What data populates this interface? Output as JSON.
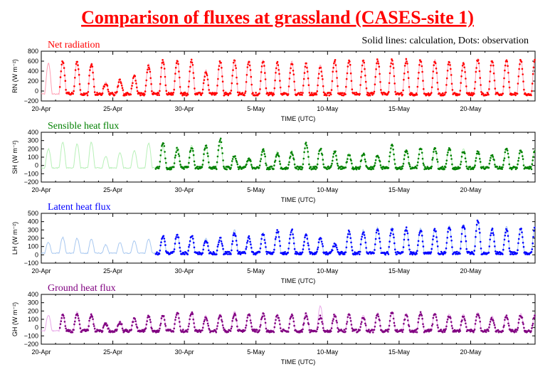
{
  "header": {
    "title": "Comparison of fluxes at grassland (CASES-site 1)",
    "subtitle": "Solid lines: calculation, Dots: observation"
  },
  "chart_data": [
    {
      "type": "line",
      "label": "Net radiation",
      "ylabel": "RN (W m⁻²)",
      "xlabel": "TIME (UTC)",
      "ylim": [
        -200,
        800
      ],
      "yticks": [
        -200,
        0,
        200,
        400,
        600,
        800
      ],
      "x_tick_labels": [
        "20-Apr",
        "25-Apr",
        "30-Apr",
        "5-May",
        "10-May",
        "15-May",
        "20-May"
      ],
      "x_range": [
        "2000-04-20",
        "2000-05-24"
      ],
      "series": [
        {
          "name": "calculation",
          "style": "line",
          "color": "#ffa0b4"
        },
        {
          "name": "observation",
          "style": "dots",
          "color": "#ff0000"
        }
      ],
      "obs_start_day": 1.3,
      "daily_peak_obs": [
        0,
        600,
        580,
        540,
        150,
        220,
        300,
        500,
        610,
        610,
        610,
        380,
        590,
        600,
        600,
        600,
        560,
        560,
        540,
        480,
        620,
        610,
        600,
        620,
        620,
        620,
        620,
        610,
        580,
        560,
        630,
        600,
        620,
        620,
        630
      ],
      "daily_peak_calc": [
        560,
        600,
        580,
        560,
        180,
        240,
        320,
        540,
        620,
        620,
        620,
        420,
        600,
        620,
        620,
        620,
        580,
        600,
        560,
        520,
        640,
        620,
        620,
        640,
        640,
        640,
        640,
        630,
        600,
        580,
        650,
        620,
        640,
        640,
        650
      ],
      "night_value": -60
    },
    {
      "type": "line",
      "label": "Sensible heat flux",
      "ylabel": "SH (W m⁻²)",
      "xlabel": "TIME (UTC)",
      "ylim": [
        -200,
        400
      ],
      "yticks": [
        -200,
        -100,
        0,
        100,
        200,
        300,
        400
      ],
      "x_tick_labels": [
        "20-Apr",
        "25-Apr",
        "30-Apr",
        "5-May",
        "10-May",
        "15-May",
        "20-May"
      ],
      "x_range": [
        "2000-04-20",
        "2000-05-24"
      ],
      "series": [
        {
          "name": "calculation",
          "style": "line",
          "color": "#b8f0b8"
        },
        {
          "name": "observation",
          "style": "dots",
          "color": "#008000"
        }
      ],
      "obs_start_day": 8.0,
      "daily_peak_obs": [
        0,
        0,
        0,
        0,
        0,
        0,
        0,
        0,
        280,
        200,
        220,
        230,
        320,
        120,
        80,
        190,
        140,
        150,
        260,
        200,
        170,
        130,
        140,
        120,
        250,
        180,
        200,
        200,
        210,
        170,
        160,
        120,
        200,
        180,
        190
      ],
      "daily_peak_calc": [
        200,
        280,
        260,
        280,
        110,
        150,
        180,
        270,
        220,
        230,
        240,
        240,
        260,
        110,
        70,
        200,
        170,
        180,
        260,
        210,
        170,
        150,
        130,
        110,
        220,
        190,
        210,
        200,
        220,
        200,
        170,
        130,
        200,
        190,
        200
      ],
      "night_value": -30
    },
    {
      "type": "line",
      "label": "Latent heat flux",
      "ylabel": "LH (W m⁻²)",
      "xlabel": "TIME (UTC)",
      "ylim": [
        -100,
        500
      ],
      "yticks": [
        -100,
        0,
        100,
        200,
        300,
        400,
        500
      ],
      "x_tick_labels": [
        "20-Apr",
        "25-Apr",
        "30-Apr",
        "5-May",
        "10-May",
        "15-May",
        "20-May"
      ],
      "x_range": [
        "2000-04-20",
        "2000-05-24"
      ],
      "series": [
        {
          "name": "calculation",
          "style": "line",
          "color": "#a8c8f0"
        },
        {
          "name": "observation",
          "style": "dots",
          "color": "#0000ff"
        }
      ],
      "obs_start_day": 8.0,
      "daily_peak_obs": [
        0,
        0,
        0,
        0,
        0,
        0,
        0,
        0,
        220,
        240,
        230,
        180,
        200,
        260,
        210,
        250,
        290,
        300,
        230,
        200,
        120,
        280,
        270,
        310,
        310,
        320,
        300,
        300,
        340,
        360,
        410,
        300,
        300,
        310,
        330
      ],
      "daily_peak_calc": [
        150,
        210,
        200,
        190,
        120,
        150,
        170,
        190,
        230,
        240,
        220,
        200,
        210,
        300,
        230,
        270,
        290,
        300,
        250,
        180,
        140,
        290,
        300,
        330,
        330,
        320,
        320,
        320,
        350,
        370,
        420,
        330,
        350,
        330,
        350
      ],
      "night_value": 20
    },
    {
      "type": "line",
      "label": "Ground heat flux",
      "ylabel": "GH (W m⁻²)",
      "xlabel": "TIME (UTC)",
      "ylim": [
        -200,
        400
      ],
      "yticks": [
        -200,
        -100,
        0,
        100,
        200,
        300,
        400
      ],
      "x_tick_labels": [
        "20-Apr",
        "25-Apr",
        "30-Apr",
        "5-May",
        "10-May",
        "15-May",
        "20-May"
      ],
      "x_range": [
        "2000-04-20",
        "2000-05-24"
      ],
      "series": [
        {
          "name": "calculation",
          "style": "line",
          "color": "#e8a8e8"
        },
        {
          "name": "observation",
          "style": "dots",
          "color": "#800080"
        }
      ],
      "obs_start_day": 1.3,
      "daily_peak_obs": [
        0,
        150,
        180,
        150,
        40,
        60,
        100,
        130,
        140,
        180,
        180,
        130,
        150,
        160,
        150,
        160,
        140,
        150,
        160,
        130,
        150,
        150,
        130,
        160,
        180,
        150,
        170,
        160,
        140,
        140,
        160,
        110,
        130,
        150,
        150
      ],
      "daily_peak_calc": [
        150,
        170,
        190,
        170,
        60,
        80,
        120,
        150,
        150,
        190,
        190,
        150,
        170,
        200,
        170,
        180,
        160,
        170,
        180,
        260,
        170,
        170,
        150,
        180,
        190,
        170,
        180,
        180,
        160,
        160,
        180,
        140,
        150,
        170,
        170
      ],
      "night_value": -40
    }
  ]
}
